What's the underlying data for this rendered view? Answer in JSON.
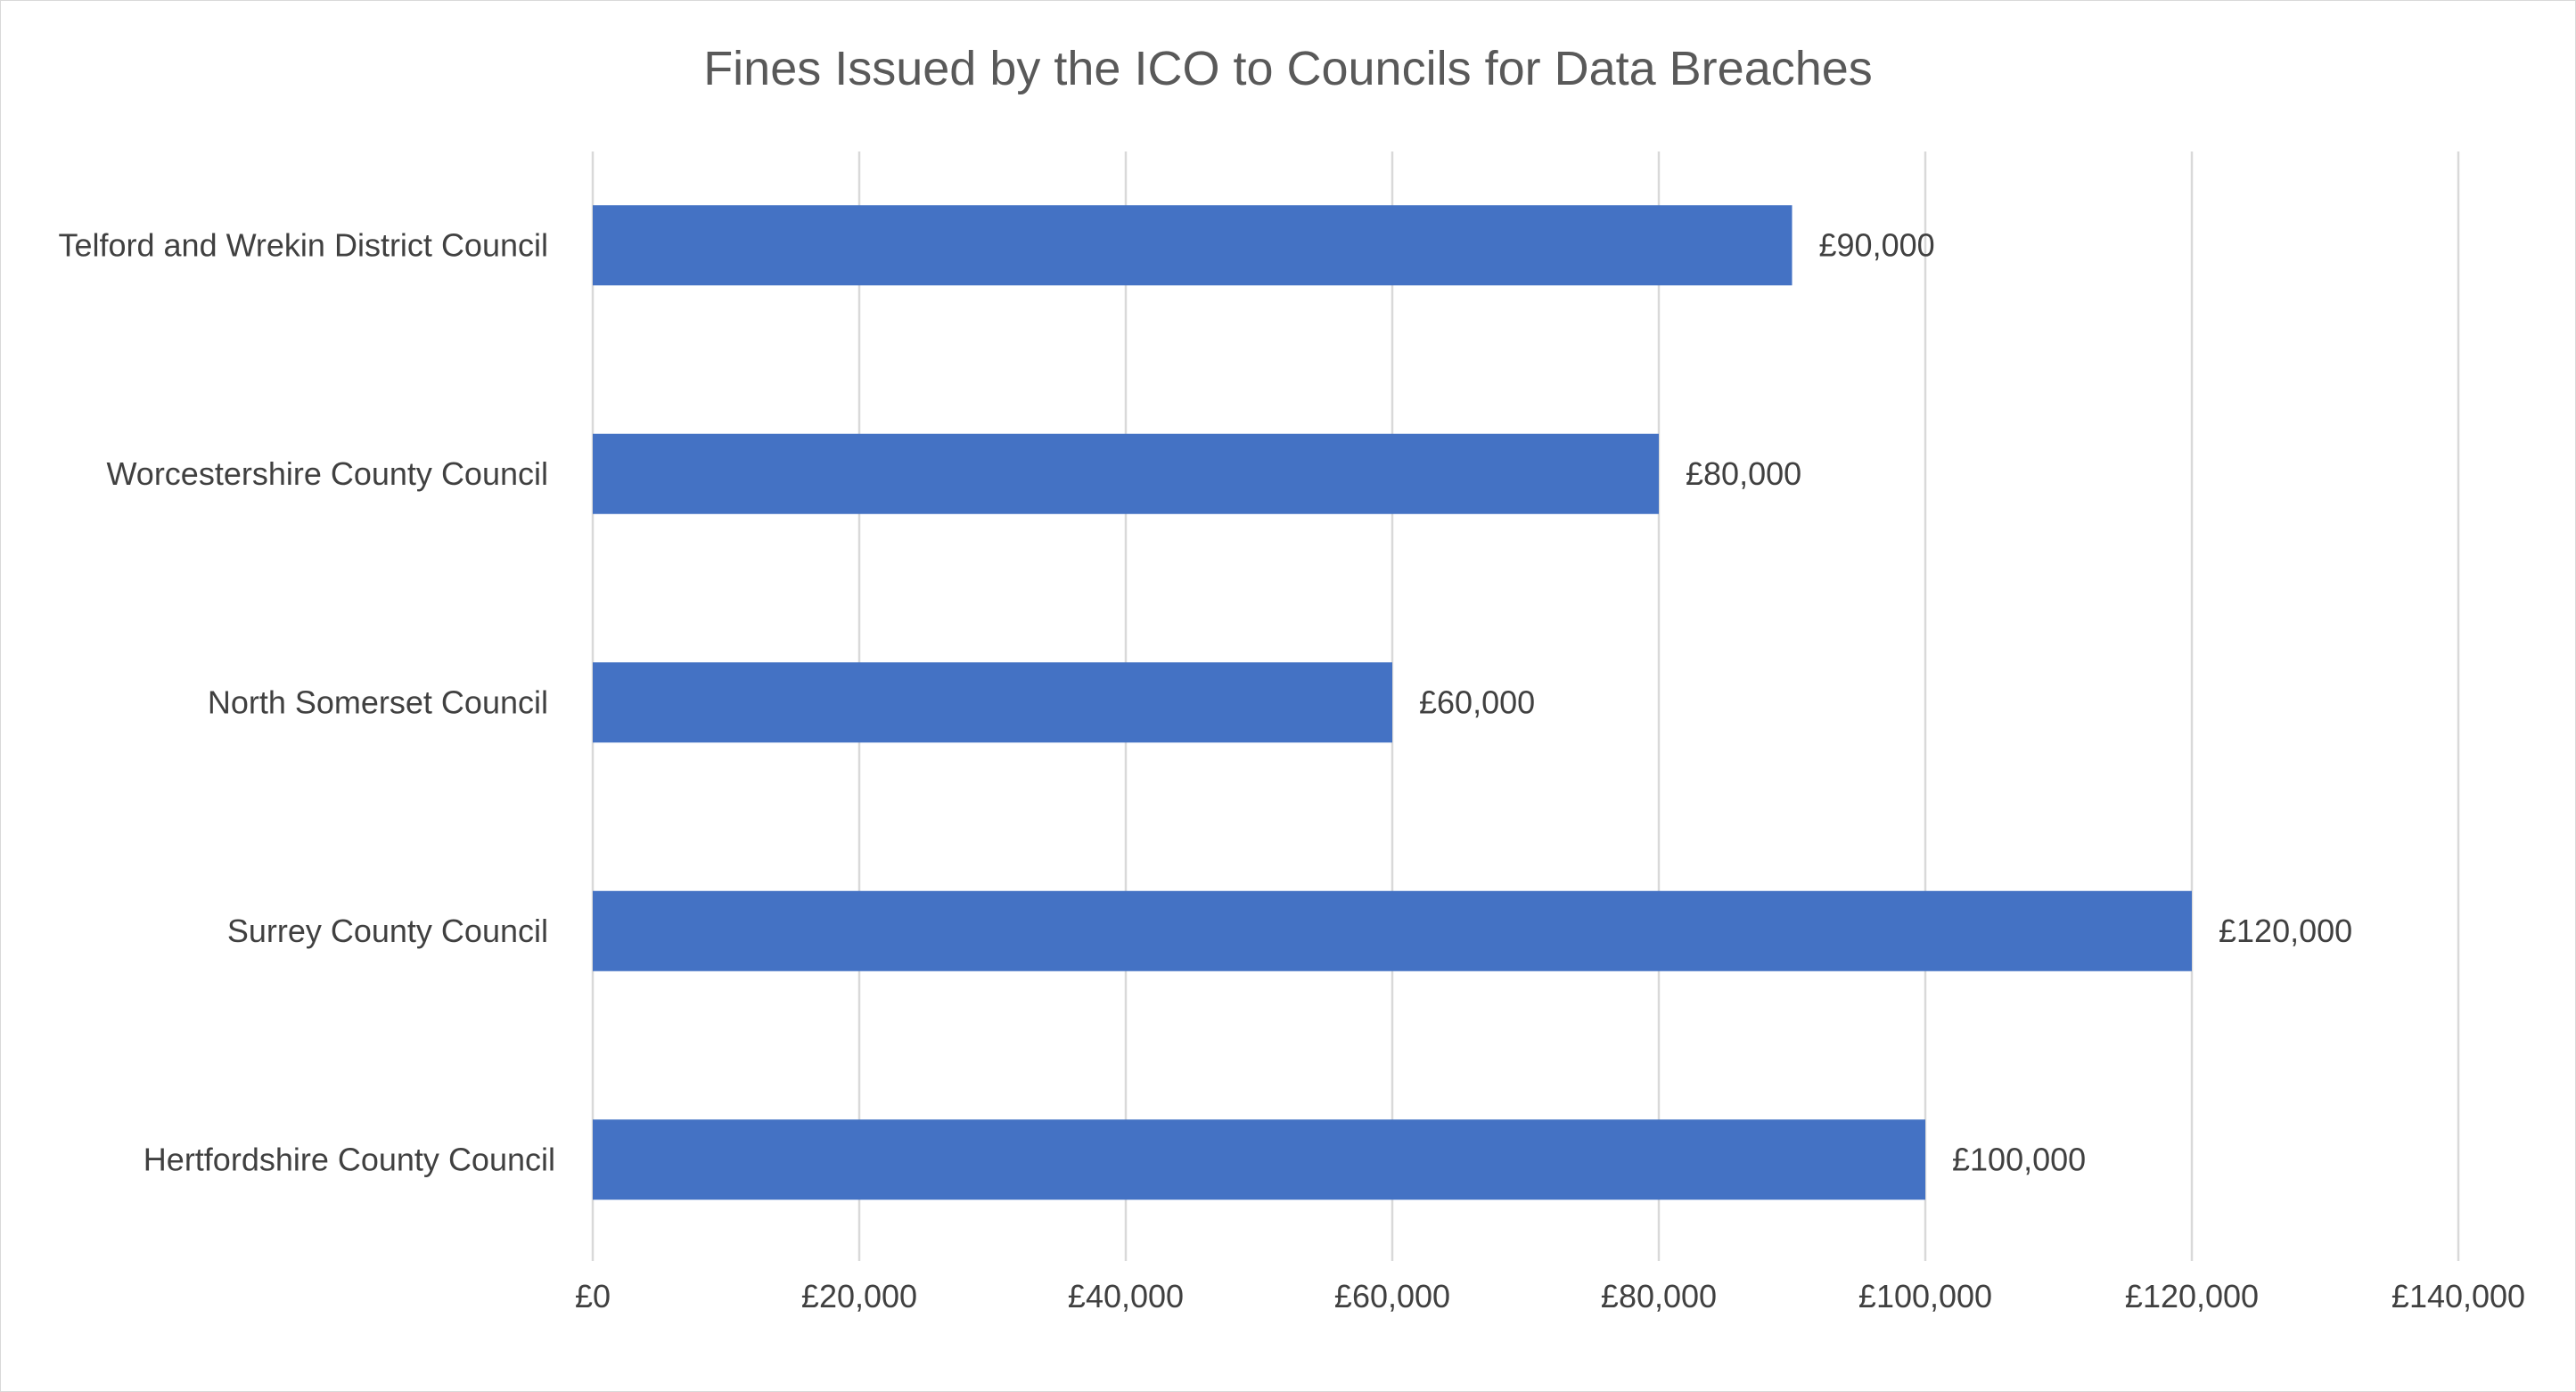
{
  "chart_data": {
    "type": "bar",
    "orientation": "horizontal",
    "title": "Fines Issued by the ICO to Councils for Data Breaches",
    "xlabel": "",
    "ylabel": "",
    "categories": [
      "Telford and Wrekin District Council",
      "Worcestershire County Council",
      "North Somerset Council",
      "Surrey County Council",
      "Hertfordshire County Council"
    ],
    "values": [
      90000,
      80000,
      60000,
      120000,
      100000
    ],
    "data_labels": [
      "£90,000",
      "£80,000",
      "£60,000",
      "£120,000",
      "£100,000"
    ],
    "xlim": [
      0,
      140000
    ],
    "x_ticks": [
      0,
      20000,
      40000,
      60000,
      80000,
      100000,
      120000,
      140000
    ],
    "x_tick_labels": [
      "£0",
      "£20,000",
      "£40,000",
      "£60,000",
      "£80,000",
      "£100,000",
      "£120,000",
      "£140,000"
    ],
    "grid": "vertical",
    "legend": "none",
    "bar_color": "#4472c4"
  }
}
